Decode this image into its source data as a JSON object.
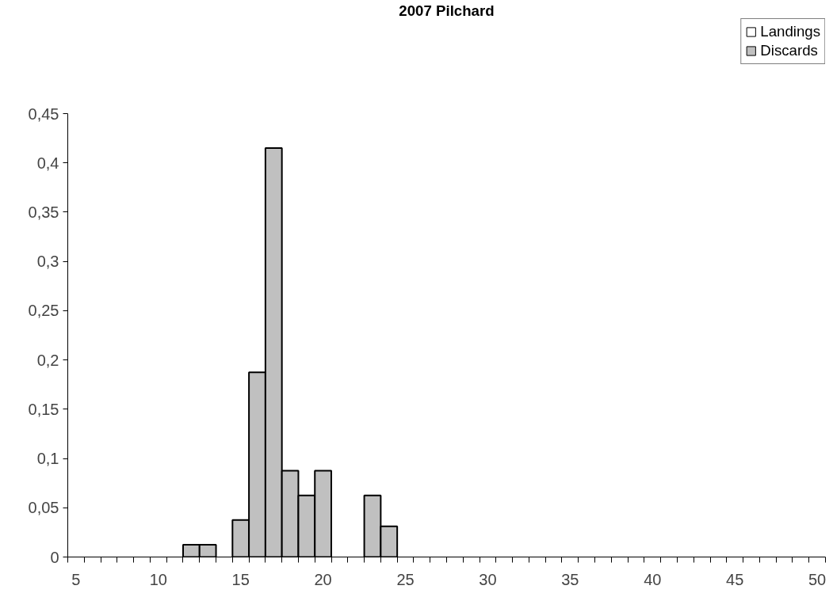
{
  "chart_data": {
    "type": "bar",
    "title": "2007 Pilchard",
    "categories": [
      "5",
      null,
      null,
      null,
      null,
      "10",
      null,
      null,
      null,
      null,
      "15",
      null,
      null,
      null,
      null,
      "20",
      null,
      null,
      null,
      null,
      "25",
      null,
      null,
      null,
      null,
      "30",
      null,
      null,
      null,
      null,
      "35",
      null,
      null,
      null,
      null,
      "40",
      null,
      null,
      null,
      null,
      "45",
      null,
      null,
      null,
      null,
      "50"
    ],
    "series": [
      {
        "name": "Landings",
        "color": "#ffffff",
        "values": [
          null,
          null,
          null,
          null,
          null,
          null,
          null,
          null,
          null,
          null,
          null,
          null,
          null,
          null,
          null,
          null,
          null,
          null,
          null,
          null,
          null,
          null,
          null,
          null,
          null,
          null,
          null,
          null,
          null,
          null,
          null,
          null,
          null,
          null,
          null,
          null,
          null,
          null,
          null,
          null,
          null,
          null,
          null,
          null,
          null,
          null
        ]
      },
      {
        "name": "Discards",
        "color": "#c0c0c0",
        "values": [
          null,
          null,
          null,
          null,
          null,
          null,
          null,
          0.0125,
          0.0125,
          null,
          0.0375,
          0.1875,
          0.415,
          0.0875,
          0.0625,
          0.0875,
          null,
          null,
          0.0625,
          0.0312,
          null,
          null,
          null,
          null,
          null,
          null,
          null,
          null,
          null,
          null,
          null,
          null,
          null,
          null,
          null,
          null,
          null,
          null,
          null,
          null,
          null,
          null,
          null,
          null,
          null,
          null
        ]
      }
    ],
    "ylim": [
      0,
      0.45
    ],
    "yticks": [
      0,
      {
        "value": 0.05,
        "label": "0,05"
      },
      {
        "value": 0.1,
        "label": "0,1"
      },
      {
        "value": 0.15,
        "label": "0,15"
      },
      {
        "value": 0.2,
        "label": "0,2"
      },
      {
        "value": 0.25,
        "label": "0,25"
      },
      {
        "value": 0.3,
        "label": "0,3"
      },
      {
        "value": 0.35,
        "label": "0,35"
      },
      {
        "value": 0.4,
        "label": "0,4"
      },
      {
        "value": 0.45,
        "label": "0,45"
      }
    ],
    "grid": false,
    "legend": "top right"
  }
}
